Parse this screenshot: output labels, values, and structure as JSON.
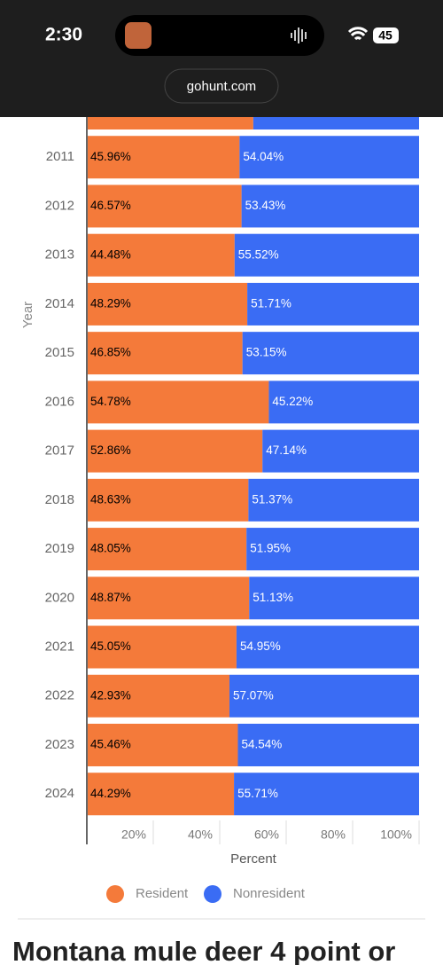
{
  "status_bar": {
    "time": "2:30",
    "battery": "45"
  },
  "url": "gohunt.com",
  "chart_data": {
    "type": "stacked-barh",
    "y_label": "Year",
    "x_label": "Percent",
    "categories": [
      null,
      "2011",
      "2012",
      "2013",
      "2014",
      "2015",
      "2016",
      "2017",
      "2018",
      "2019",
      "2020",
      "2021",
      "2022",
      "2023",
      "2024"
    ],
    "series": [
      {
        "name": "Resident",
        "color": "#f47a3a",
        "values": [
          50.1,
          45.96,
          46.57,
          44.48,
          48.29,
          46.85,
          54.78,
          52.86,
          48.63,
          48.05,
          48.87,
          45.05,
          42.93,
          45.46,
          44.29
        ],
        "value_labels": [
          null,
          "45.96%",
          "46.57%",
          "44.48%",
          "48.29%",
          "46.85%",
          "54.78%",
          "52.86%",
          "48.63%",
          "48.05%",
          "48.87%",
          "45.05%",
          "42.93%",
          "45.46%",
          "44.29%"
        ]
      },
      {
        "name": "Nonresident",
        "color": "#3a6cf4",
        "values": [
          49.9,
          54.04,
          53.43,
          55.52,
          51.71,
          53.15,
          45.22,
          47.14,
          51.37,
          51.95,
          51.13,
          54.95,
          57.07,
          54.54,
          55.71
        ],
        "value_labels": [
          null,
          "54.04%",
          "53.43%",
          "55.52%",
          "51.71%",
          "53.15%",
          "45.22%",
          "47.14%",
          "51.37%",
          "51.95%",
          "51.13%",
          "54.95%",
          "57.07%",
          "54.54%",
          "55.71%"
        ]
      }
    ],
    "xlim": [
      0,
      100
    ],
    "xticks": [
      {
        "value": 20,
        "label": "20%"
      },
      {
        "value": 40,
        "label": "40%"
      },
      {
        "value": 60,
        "label": "60%"
      },
      {
        "value": 80,
        "label": "80%"
      },
      {
        "value": 100,
        "label": "100%"
      }
    ],
    "legend": "bottom"
  },
  "heading": "Montana mule deer 4 point or"
}
